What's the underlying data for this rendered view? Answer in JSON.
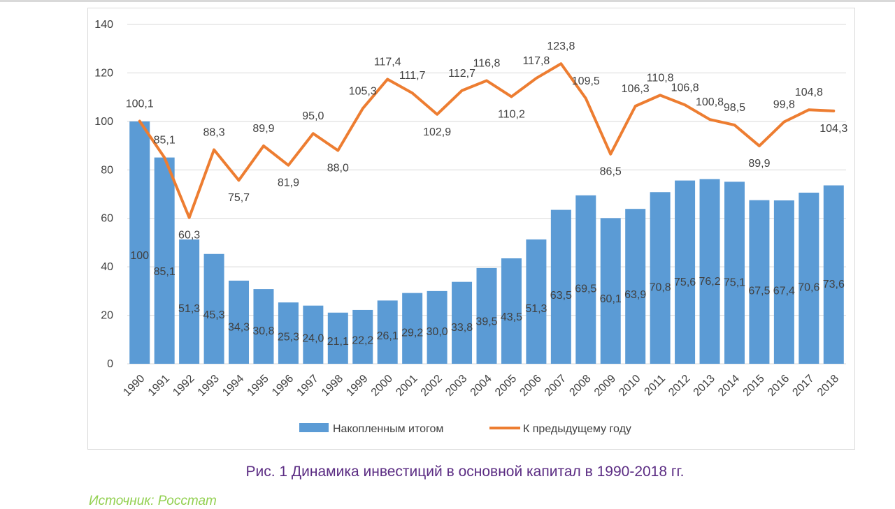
{
  "chart_data": {
    "type": "bar",
    "title": "",
    "xlabel": "",
    "ylabel": "",
    "ylim": [
      0,
      140
    ],
    "yticks": [
      "0",
      "20",
      "40",
      "60",
      "80",
      "100",
      "120",
      "140"
    ],
    "grid": true,
    "legend_position": "bottom",
    "categories": [
      "1990",
      "1991",
      "1992",
      "1993",
      "1994",
      "1995",
      "1996",
      "1997",
      "1998",
      "1999",
      "2000",
      "2001",
      "2002",
      "2003",
      "2004",
      "2005",
      "2006",
      "2007",
      "2008",
      "2009",
      "2010",
      "2011",
      "2012",
      "2013",
      "2014",
      "2015",
      "2016",
      "2017",
      "2018"
    ],
    "series": [
      {
        "name": "Накопленным итогом",
        "type": "bar",
        "color": "#5b9bd5",
        "values": [
          100,
          85.1,
          51.3,
          45.3,
          34.3,
          30.8,
          25.3,
          24.0,
          21.1,
          22.2,
          26.1,
          29.2,
          30.0,
          33.8,
          39.5,
          43.5,
          51.3,
          63.5,
          69.5,
          60.1,
          63.9,
          70.8,
          75.6,
          76.2,
          75.1,
          67.5,
          67.4,
          70.6,
          73.6
        ],
        "labels": [
          "100",
          "85,1",
          "51,3",
          "45,3",
          "34,3",
          "30,8",
          "25,3",
          "24,0",
          "21,1",
          "22,2",
          "26,1",
          "29,2",
          "30,0",
          "33,8",
          "39,5",
          "43,5",
          "51,3",
          "63,5",
          "69,5",
          "60,1",
          "63,9",
          "70,8",
          "75,6",
          "76,2",
          "75,1",
          "67,5",
          "67,4",
          "70,6",
          "73,6"
        ]
      },
      {
        "name": "К предыдущему году",
        "type": "line",
        "color": "#ed7d31",
        "values": [
          100.1,
          85.1,
          60.3,
          88.3,
          75.7,
          89.9,
          81.9,
          95.0,
          88.0,
          105.3,
          117.4,
          111.7,
          102.9,
          112.7,
          116.8,
          110.2,
          117.8,
          123.8,
          109.5,
          86.5,
          106.3,
          110.8,
          106.8,
          100.8,
          98.5,
          89.9,
          99.8,
          104.8,
          104.3
        ],
        "labels": [
          "100,1",
          "85,1",
          "60,3",
          "88,3",
          "75,7",
          "89,9",
          "81,9",
          "95,0",
          "88,0",
          "105,3",
          "117,4",
          "111,7",
          "102,9",
          "112,7",
          "116,8",
          "110,2",
          "117,8",
          "123,8",
          "109,5",
          "86,5",
          "106,3",
          "110,8",
          "106,8",
          "100,8",
          "98,5",
          "89,9",
          "99,8",
          "104,8",
          "104,3"
        ]
      }
    ]
  },
  "caption": "Рис. 1 Динамика инвестиций в основной капитал в 1990-2018 гг.",
  "source": "Источник: Росстат"
}
